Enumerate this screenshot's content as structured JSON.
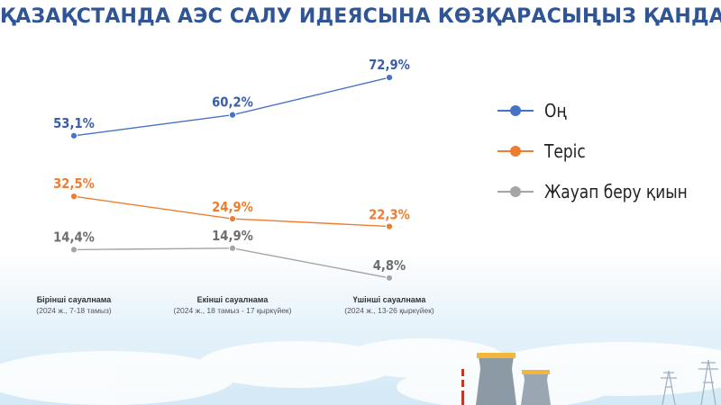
{
  "title": "ҚАЗАҚСТАНДА АЭС САЛУ ИДЕЯСЫНА КӨЗҚАРАСЫҢЫЗ ҚАНДАЙ?",
  "colors": {
    "title": "#2f5597",
    "on": "#4472c4",
    "teris": "#ed7d31",
    "zhauap": "#a5a5a5",
    "label_on": "#3a5ea8",
    "label_teris": "#ed7d31",
    "label_zhauap": "#6e6e6e"
  },
  "chart_data": {
    "type": "line",
    "categories": [
      {
        "line1": "Бірінші сауалнама",
        "line2": "(2024 ж., 7-18 тамыз)"
      },
      {
        "line1": "Екінші сауалнама",
        "line2": "(2024 ж., 18 тамыз - 17 қыркүйек)"
      },
      {
        "line1": "Үшінші сауалнама",
        "line2": "(2024 ж., 13-26 қыркүйек)"
      }
    ],
    "series": [
      {
        "key": "on",
        "name": "Оң",
        "values": [
          53.1,
          60.2,
          72.9
        ],
        "labels": [
          "53,1%",
          "60,2%",
          "72,9%"
        ]
      },
      {
        "key": "teris",
        "name": "Теріс",
        "values": [
          32.5,
          24.9,
          22.3
        ],
        "labels": [
          "32,5%",
          "24,9%",
          "22,3%"
        ]
      },
      {
        "key": "zhauap",
        "name": "Жауап беру қиын",
        "values": [
          14.4,
          14.9,
          4.8
        ],
        "labels": [
          "14,4%",
          "14,9%",
          "4,8%"
        ]
      }
    ],
    "legend_position": "right",
    "grid": false
  }
}
